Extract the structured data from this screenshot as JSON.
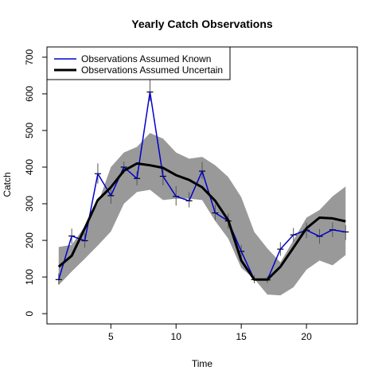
{
  "chart_data": {
    "type": "line",
    "title": "Yearly Catch Observations",
    "xlabel": "Time",
    "ylabel": "Catch",
    "xlim": [
      0.1,
      23.9
    ],
    "ylim": [
      -28,
      728
    ],
    "xticks": [
      5,
      10,
      15,
      20
    ],
    "yticks": [
      0,
      100,
      200,
      300,
      400,
      500,
      600,
      700
    ],
    "grid": false,
    "legend_position": "top-left",
    "x": [
      1,
      2,
      3,
      4,
      5,
      6,
      7,
      8,
      9,
      10,
      11,
      12,
      13,
      14,
      15,
      16,
      17,
      18,
      19,
      20,
      21,
      22,
      23
    ],
    "observations": {
      "values": [
        93,
        212,
        199,
        382,
        322,
        400,
        369,
        605,
        375,
        320,
        308,
        389,
        275,
        253,
        170,
        93,
        92,
        176,
        215,
        228,
        211,
        229,
        223
      ],
      "error_low": [
        80,
        190,
        180,
        355,
        300,
        382,
        350,
        580,
        350,
        295,
        290,
        368,
        255,
        232,
        150,
        83,
        83,
        158,
        196,
        206,
        191,
        209,
        201
      ],
      "error_high": [
        110,
        232,
        220,
        410,
        342,
        415,
        388,
        640,
        400,
        348,
        332,
        414,
        298,
        273,
        188,
        105,
        102,
        195,
        234,
        248,
        231,
        249,
        242
      ]
    },
    "uncertainty_band": {
      "upper": [
        182,
        188,
        238,
        300,
        400,
        440,
        455,
        493,
        478,
        440,
        423,
        428,
        405,
        373,
        318,
        223,
        178,
        140,
        200,
        262,
        283,
        320,
        347
      ],
      "lower": [
        78,
        115,
        150,
        186,
        224,
        300,
        332,
        338,
        310,
        314,
        314,
        310,
        253,
        205,
        125,
        95,
        52,
        50,
        72,
        120,
        145,
        132,
        160
      ]
    },
    "series": [
      {
        "name": "Observations Assumed Known",
        "color": "#0000cd",
        "values": [
          93,
          212,
          199,
          382,
          322,
          400,
          369,
          605,
          375,
          320,
          308,
          389,
          275,
          253,
          170,
          93,
          92,
          176,
          215,
          228,
          211,
          229,
          223
        ]
      },
      {
        "name": "Observations Assumed Uncertain",
        "color": "#000000",
        "values": [
          128,
          158,
          233,
          310,
          345,
          390,
          410,
          405,
          398,
          378,
          365,
          345,
          308,
          255,
          145,
          93,
          93,
          128,
          180,
          233,
          262,
          260,
          252
        ]
      }
    ],
    "band_color": "#999999"
  }
}
